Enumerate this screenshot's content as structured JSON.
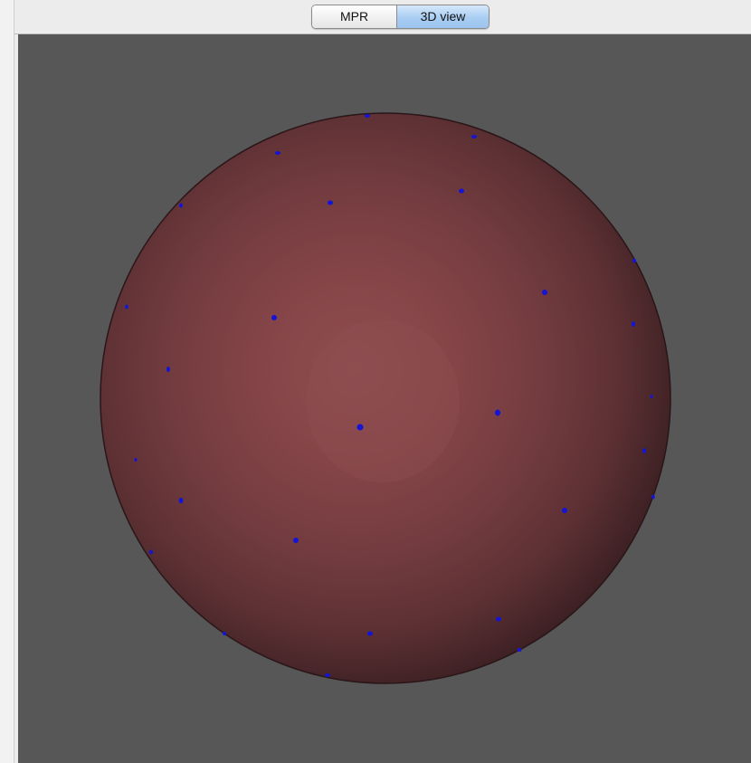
{
  "tabs": {
    "items": [
      {
        "label": "MPR",
        "selected": false
      },
      {
        "label": "3D view",
        "selected": true
      }
    ]
  },
  "render_view": {
    "background_color": "#575757",
    "object": "sphere",
    "sphere_color": "#8c4a4c",
    "sphere_edge_color": "#3a1f22",
    "marker_color": "#1414d6",
    "marker_count": 27
  }
}
